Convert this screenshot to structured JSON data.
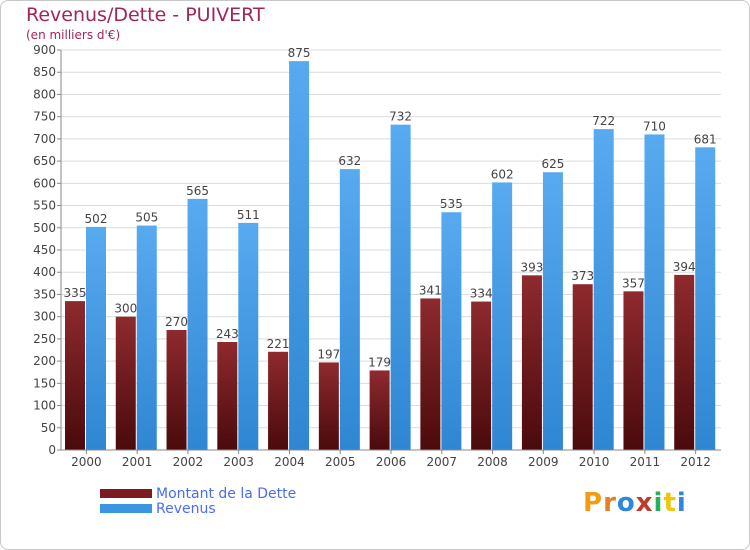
{
  "title": "Revenus/Dette - PUIVERT",
  "unit": "(en milliers d'€)",
  "logo": [
    "P",
    "r",
    "o",
    "x",
    "i",
    "t",
    "i"
  ],
  "colors": {
    "title": "#a0265a",
    "legend_text": "#4a6cf2",
    "dette": "#7a1c20",
    "revenus": "#3a96e0",
    "logo": [
      "#f39c12",
      "#e67e22",
      "#2e86de",
      "#c0392b",
      "#27ae60",
      "#f1c40f",
      "#2e86de"
    ]
  },
  "legend": [
    {
      "label": "Montant de la Dette",
      "color_key": "dette"
    },
    {
      "label": "Revenus",
      "color_key": "revenus"
    }
  ],
  "chart_data": {
    "type": "bar",
    "title": "Revenus/Dette - PUIVERT",
    "ylabel": "(en milliers d'€)",
    "xlabel": "",
    "categories": [
      "2000",
      "2001",
      "2002",
      "2003",
      "2004",
      "2005",
      "2006",
      "2007",
      "2008",
      "2009",
      "2010",
      "2011",
      "2012"
    ],
    "series": [
      {
        "name": "Montant de la Dette",
        "values": [
          335,
          300,
          270,
          243,
          221,
          197,
          179,
          341,
          334,
          393,
          373,
          357,
          394
        ]
      },
      {
        "name": "Revenus",
        "values": [
          502,
          505,
          565,
          511,
          875,
          632,
          732,
          535,
          602,
          625,
          722,
          710,
          681
        ]
      }
    ],
    "ylim": [
      0,
      900
    ],
    "yticks": [
      0,
      50,
      100,
      150,
      200,
      250,
      300,
      350,
      400,
      450,
      500,
      550,
      600,
      650,
      700,
      750,
      800,
      850,
      900
    ],
    "grid": true,
    "legend_position": "bottom-left"
  }
}
